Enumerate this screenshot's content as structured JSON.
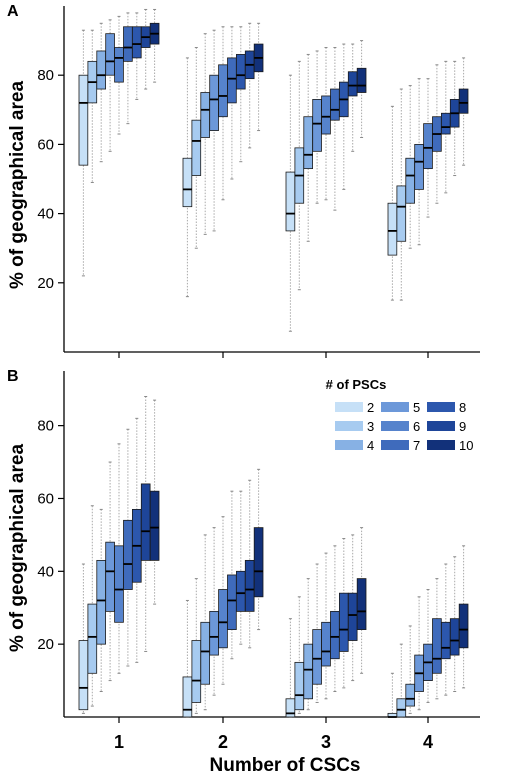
{
  "chart_data": [
    {
      "panel": "A",
      "type": "boxplot",
      "xlabel": "",
      "ylabel": "% of geographical area",
      "ylim": [
        0,
        100
      ],
      "yticks": [
        20,
        40,
        60,
        80
      ],
      "categories": [
        "1",
        "2",
        "3",
        "4"
      ],
      "series_labels": [
        "2",
        "3",
        "4",
        "5",
        "6",
        "7",
        "8",
        "9",
        "10"
      ],
      "boxes": [
        [
          {
            "min": 22,
            "q1": 54,
            "median": 72,
            "q3": 80,
            "max": 93
          },
          {
            "min": 49,
            "q1": 72,
            "median": 78,
            "q3": 84,
            "max": 93
          },
          {
            "min": 55,
            "q1": 76,
            "median": 80,
            "q3": 87,
            "max": 95
          },
          {
            "min": 58,
            "q1": 80,
            "median": 84,
            "q3": 92,
            "max": 96
          },
          {
            "min": 63,
            "q1": 78,
            "median": 85,
            "q3": 88,
            "max": 97
          },
          {
            "min": 66,
            "q1": 84,
            "median": 88,
            "q3": 94,
            "max": 98
          },
          {
            "min": 73,
            "q1": 85,
            "median": 89,
            "q3": 94,
            "max": 98
          },
          {
            "min": 76,
            "q1": 88,
            "median": 91,
            "q3": 94,
            "max": 99
          },
          {
            "min": 78,
            "q1": 89,
            "median": 92,
            "q3": 95,
            "max": 99
          }
        ],
        [
          {
            "min": 16,
            "q1": 42,
            "median": 47,
            "q3": 56,
            "max": 85
          },
          {
            "min": 30,
            "q1": 51,
            "median": 61,
            "q3": 67,
            "max": 88
          },
          {
            "min": 34,
            "q1": 62,
            "median": 70,
            "q3": 75,
            "max": 92
          },
          {
            "min": 35,
            "q1": 64,
            "median": 73,
            "q3": 80,
            "max": 93
          },
          {
            "min": 44,
            "q1": 68,
            "median": 74,
            "q3": 83,
            "max": 94
          },
          {
            "min": 50,
            "q1": 72,
            "median": 79,
            "q3": 85,
            "max": 94
          },
          {
            "min": 55,
            "q1": 76,
            "median": 80,
            "q3": 86,
            "max": 94
          },
          {
            "min": 59,
            "q1": 79,
            "median": 83,
            "q3": 87,
            "max": 95
          },
          {
            "min": 64,
            "q1": 81,
            "median": 85,
            "q3": 89,
            "max": 95
          }
        ],
        [
          {
            "min": 6,
            "q1": 35,
            "median": 40,
            "q3": 52,
            "max": 80
          },
          {
            "min": 18,
            "q1": 43,
            "median": 51,
            "q3": 59,
            "max": 84
          },
          {
            "min": 32,
            "q1": 53,
            "median": 57,
            "q3": 68,
            "max": 86
          },
          {
            "min": 43,
            "q1": 58,
            "median": 66,
            "q3": 73,
            "max": 87
          },
          {
            "min": 44,
            "q1": 63,
            "median": 68,
            "q3": 74,
            "max": 88
          },
          {
            "min": 41,
            "q1": 67,
            "median": 70,
            "q3": 76,
            "max": 88
          },
          {
            "min": 47,
            "q1": 68,
            "median": 73,
            "q3": 78,
            "max": 89
          },
          {
            "min": 58,
            "q1": 74,
            "median": 77,
            "q3": 81,
            "max": 89
          },
          {
            "min": 62,
            "q1": 75,
            "median": 77,
            "q3": 82,
            "max": 90
          }
        ],
        [
          {
            "min": 15,
            "q1": 28,
            "median": 35,
            "q3": 43,
            "max": 71
          },
          {
            "min": 15,
            "q1": 32,
            "median": 42,
            "q3": 48,
            "max": 76
          },
          {
            "min": 30,
            "q1": 43,
            "median": 51,
            "q3": 56,
            "max": 77
          },
          {
            "min": 31,
            "q1": 47,
            "median": 55,
            "q3": 60,
            "max": 79
          },
          {
            "min": 39,
            "q1": 53,
            "median": 59,
            "q3": 66,
            "max": 79
          },
          {
            "min": 43,
            "q1": 58,
            "median": 63,
            "q3": 68,
            "max": 83
          },
          {
            "min": 46,
            "q1": 63,
            "median": 65,
            "q3": 69,
            "max": 84
          },
          {
            "min": 51,
            "q1": 65,
            "median": 69,
            "q3": 73,
            "max": 84
          },
          {
            "min": 54,
            "q1": 69,
            "median": 72,
            "q3": 76,
            "max": 85
          }
        ]
      ]
    },
    {
      "panel": "B",
      "type": "boxplot",
      "xlabel": "Number of CSCs",
      "ylabel": "% of geographical area",
      "ylim": [
        0,
        95
      ],
      "yticks": [
        20,
        40,
        60,
        80
      ],
      "categories": [
        "1",
        "2",
        "3",
        "4"
      ],
      "series_labels": [
        "2",
        "3",
        "4",
        "5",
        "6",
        "7",
        "8",
        "9",
        "10"
      ],
      "legend_title": "# of PSCs",
      "legend_position": "top-right",
      "boxes": [
        [
          {
            "min": 1,
            "q1": 2,
            "median": 8,
            "q3": 21,
            "max": 42
          },
          {
            "min": 3,
            "q1": 12,
            "median": 22,
            "q3": 31,
            "max": 58
          },
          {
            "min": 7,
            "q1": 20,
            "median": 32,
            "q3": 43,
            "max": 57
          },
          {
            "min": 10,
            "q1": 29,
            "median": 40,
            "q3": 48,
            "max": 70
          },
          {
            "min": 12,
            "q1": 26,
            "median": 35,
            "q3": 47,
            "max": 75
          },
          {
            "min": 14,
            "q1": 35,
            "median": 42,
            "q3": 54,
            "max": 79
          },
          {
            "min": 15,
            "q1": 37,
            "median": 47,
            "q3": 57,
            "max": 82
          },
          {
            "min": 18,
            "q1": 43,
            "median": 51,
            "q3": 64,
            "max": 88
          },
          {
            "min": 31,
            "q1": 43,
            "median": 52,
            "q3": 62,
            "max": 87
          }
        ],
        [
          {
            "min": 0,
            "q1": 0,
            "median": 2,
            "q3": 11,
            "max": 32
          },
          {
            "min": 1,
            "q1": 4,
            "median": 10,
            "q3": 21,
            "max": 38
          },
          {
            "min": 2,
            "q1": 9,
            "median": 18,
            "q3": 26,
            "max": 50
          },
          {
            "min": 6,
            "q1": 17,
            "median": 22,
            "q3": 29,
            "max": 52
          },
          {
            "min": 9,
            "q1": 19,
            "median": 26,
            "q3": 35,
            "max": 55
          },
          {
            "min": 16,
            "q1": 24,
            "median": 32,
            "q3": 39,
            "max": 62
          },
          {
            "min": 20,
            "q1": 29,
            "median": 34,
            "q3": 40,
            "max": 62
          },
          {
            "min": 19,
            "q1": 29,
            "median": 35,
            "q3": 43,
            "max": 65
          },
          {
            "min": 24,
            "q1": 33,
            "median": 40,
            "q3": 52,
            "max": 68
          }
        ],
        [
          {
            "min": 0,
            "q1": 0,
            "median": 1,
            "q3": 5,
            "max": 27
          },
          {
            "min": 1,
            "q1": 2,
            "median": 6,
            "q3": 15,
            "max": 33
          },
          {
            "min": 2,
            "q1": 5,
            "median": 13,
            "q3": 20,
            "max": 38
          },
          {
            "min": 4,
            "q1": 9,
            "median": 16,
            "q3": 24,
            "max": 42
          },
          {
            "min": 5,
            "q1": 14,
            "median": 18,
            "q3": 26,
            "max": 45
          },
          {
            "min": 7,
            "q1": 16,
            "median": 22,
            "q3": 29,
            "max": 47
          },
          {
            "min": 8,
            "q1": 18,
            "median": 24,
            "q3": 34,
            "max": 49
          },
          {
            "min": 10,
            "q1": 21,
            "median": 28,
            "q3": 34,
            "max": 50
          },
          {
            "min": 12,
            "q1": 24,
            "median": 29,
            "q3": 38,
            "max": 52
          }
        ],
        [
          {
            "min": 0,
            "q1": 0,
            "median": 0,
            "q3": 1,
            "max": 12
          },
          {
            "min": 0,
            "q1": 0,
            "median": 2,
            "q3": 5,
            "max": 20
          },
          {
            "min": 1,
            "q1": 3,
            "median": 5,
            "q3": 9,
            "max": 25
          },
          {
            "min": 2,
            "q1": 7,
            "median": 12,
            "q3": 17,
            "max": 33
          },
          {
            "min": 4,
            "q1": 10,
            "median": 15,
            "q3": 20,
            "max": 35
          },
          {
            "min": 5,
            "q1": 12,
            "median": 16,
            "q3": 27,
            "max": 38
          },
          {
            "min": 6,
            "q1": 16,
            "median": 19,
            "q3": 26,
            "max": 42
          },
          {
            "min": 7,
            "q1": 17,
            "median": 21,
            "q3": 27,
            "max": 44
          },
          {
            "min": 8,
            "q1": 19,
            "median": 24,
            "q3": 31,
            "max": 47
          }
        ]
      ]
    }
  ],
  "colors": [
    "#c6e0f7",
    "#a7cbf0",
    "#87b1e4",
    "#6c98d9",
    "#5683cc",
    "#3f6bbc",
    "#2c57ad",
    "#1e4599",
    "#12317a"
  ],
  "whisker_color": "#aaaaaa"
}
